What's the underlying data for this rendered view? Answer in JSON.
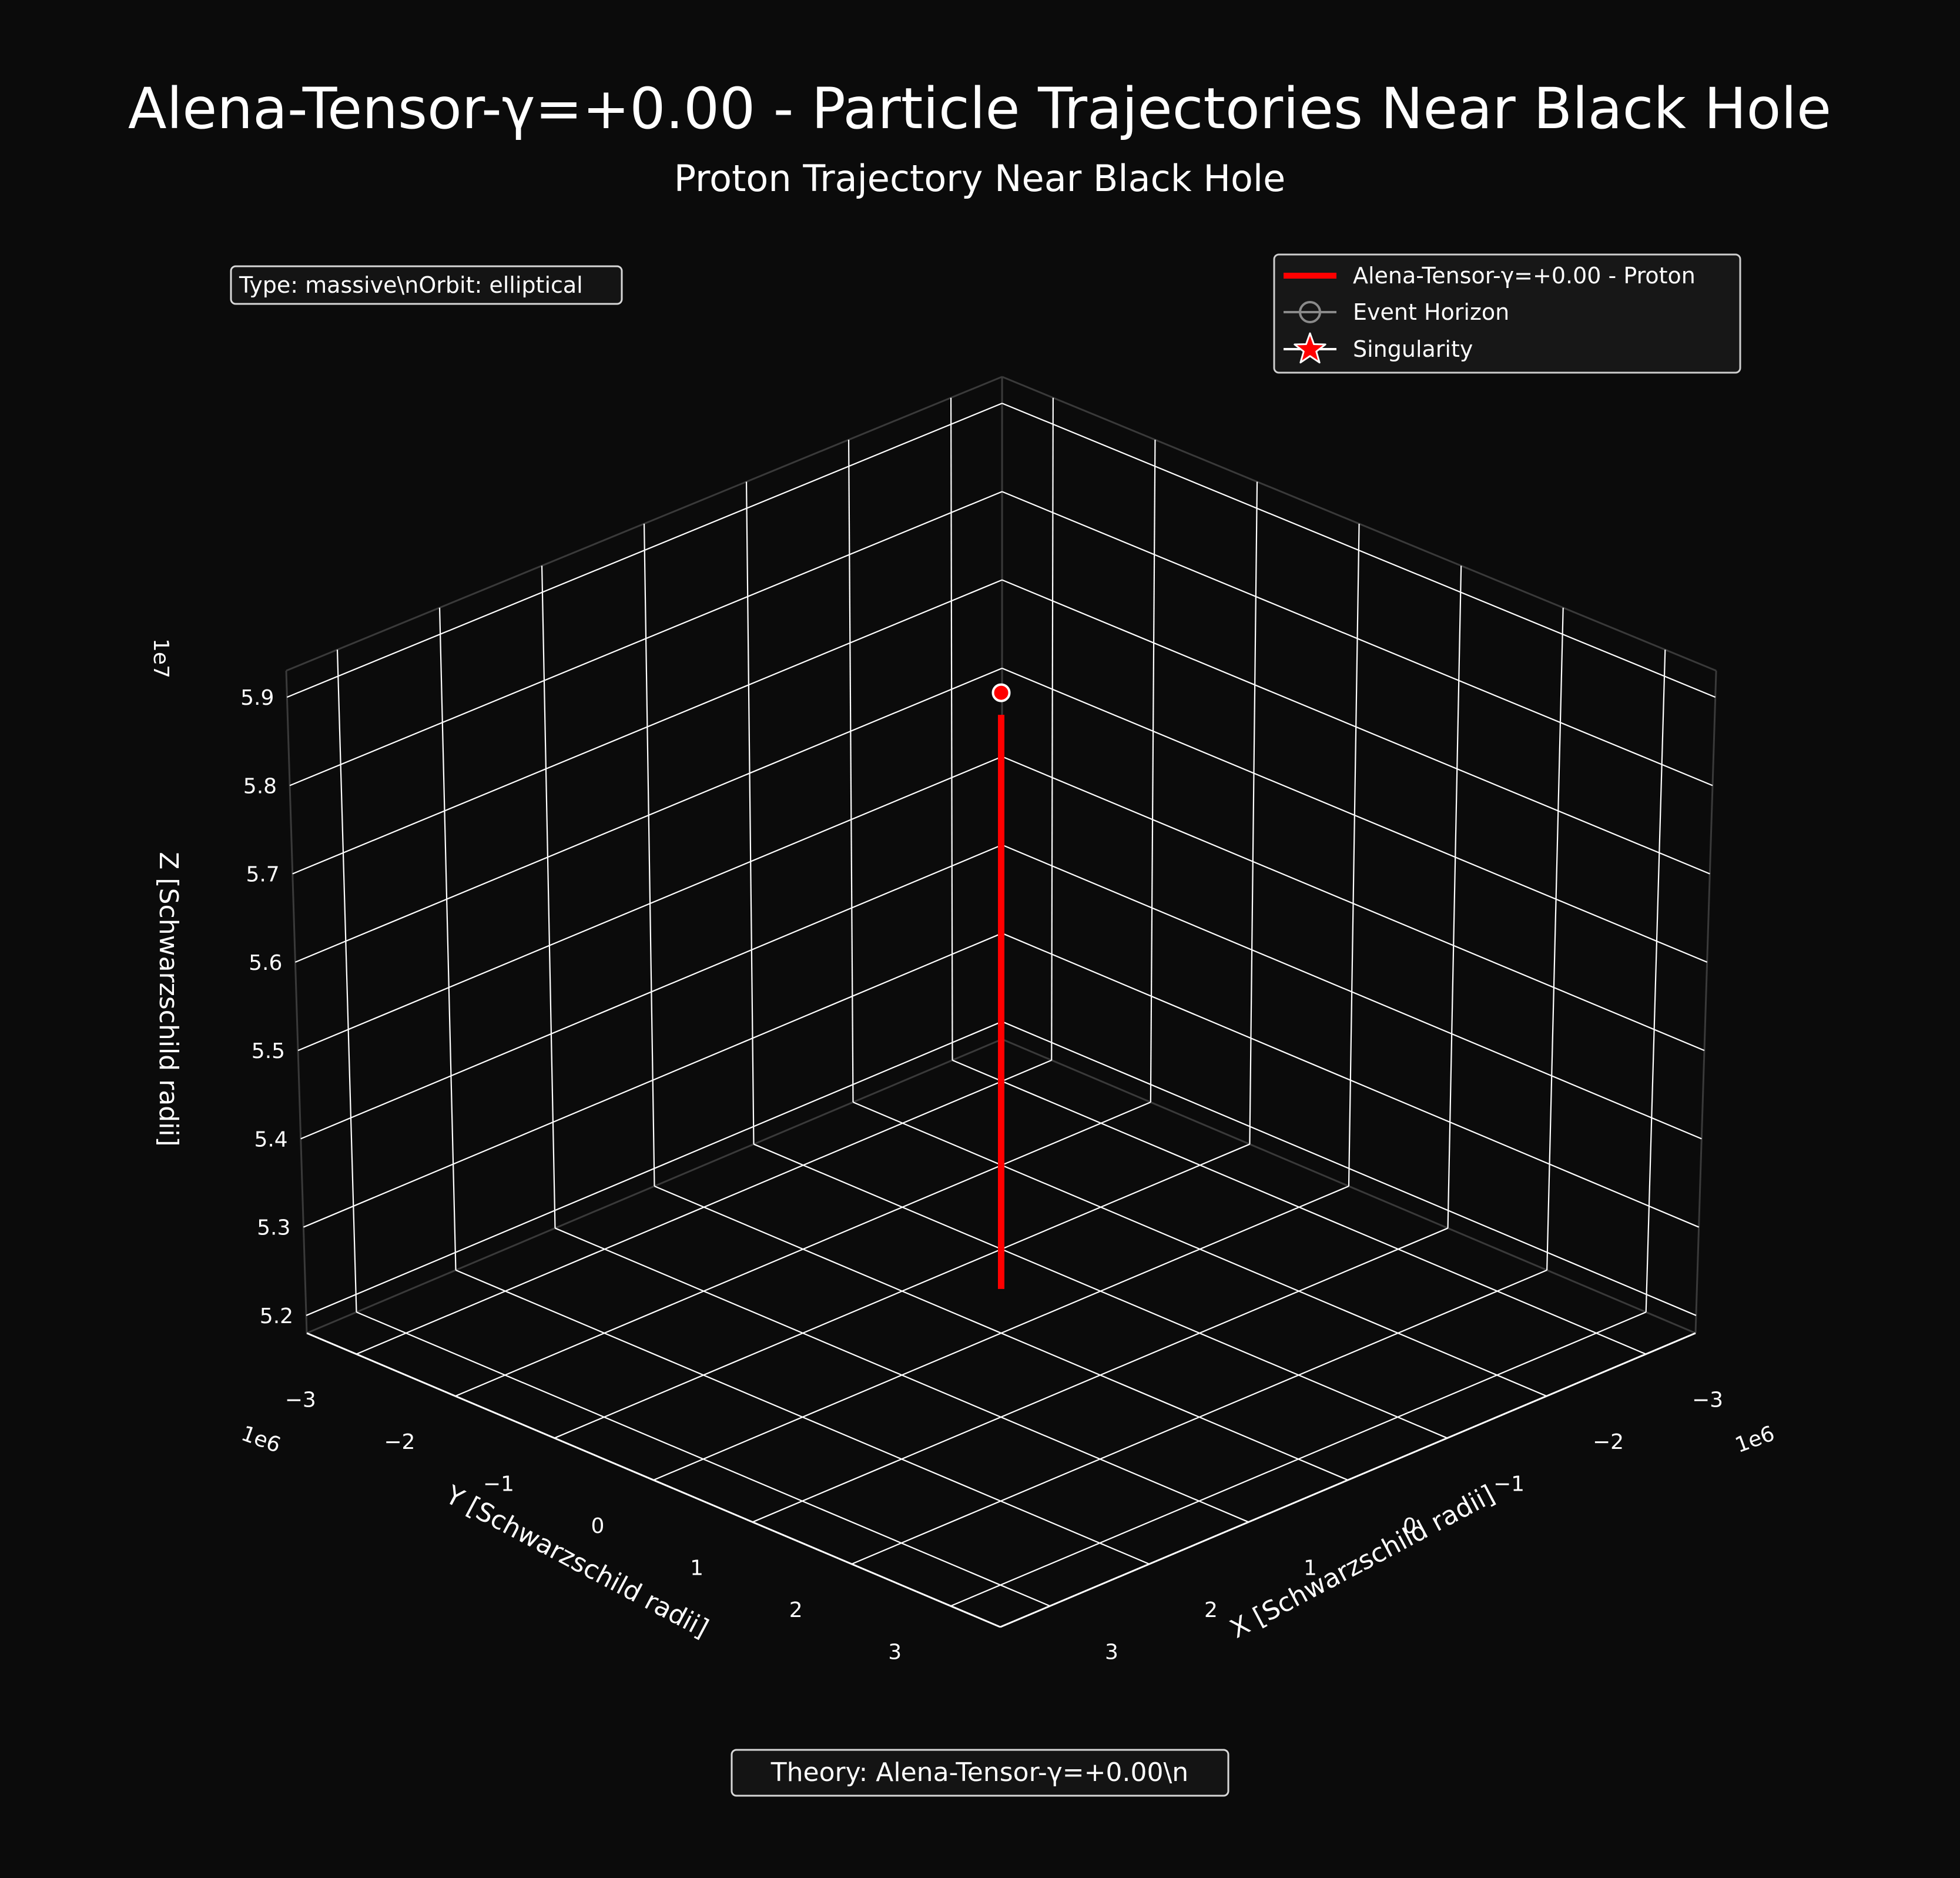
{
  "colors": {
    "background": "#0b0b0b",
    "text": "#ffffff",
    "grid": "#ffffff",
    "pane_edge": "#3a3a3a",
    "trajectory": "#ff0000",
    "marker_fill": "#ff0000",
    "marker_edge": "#ffffff",
    "legend_bg": "#171717",
    "legend_edge": "#cfcfcf",
    "horizon_line": "#8a8a8a"
  },
  "header": {
    "title": "Alena-Tensor-γ=+0.00 - Particle Trajectories Near Black Hole",
    "subtitle": "Proton Trajectory Near Black Hole"
  },
  "info_box": {
    "text": "Type: massive\\nOrbit: elliptical"
  },
  "footer_box": {
    "text": "Theory: Alena-Tensor-γ=+0.00\\n"
  },
  "legend": {
    "entries": [
      {
        "label": "Alena-Tensor-γ=+0.00 - Proton",
        "icon": "red-line"
      },
      {
        "label": "Event Horizon",
        "icon": "hollow-circle-line"
      },
      {
        "label": "Singularity",
        "icon": "red-star"
      }
    ]
  },
  "chart_data": {
    "type": "line",
    "projection": "3d",
    "title": "Proton Trajectory Near Black Hole",
    "xlabel": "X [Schwarzschild radii]",
    "ylabel": "Y [Schwarzschild radii]",
    "zlabel": "Z [Schwarzschild radii]",
    "x_offset_text": "1e6",
    "y_offset_text": "1e6",
    "z_offset_text": "1e7",
    "xlim": [
      -3.5,
      3.5
    ],
    "ylim": [
      -3.5,
      3.5
    ],
    "zlim": [
      5.18,
      5.93
    ],
    "x_ticks": [
      -3,
      -2,
      -1,
      0,
      1,
      2,
      3
    ],
    "y_ticks": [
      -3,
      -2,
      -1,
      0,
      1,
      2,
      3
    ],
    "z_ticks": [
      5.2,
      5.3,
      5.4,
      5.5,
      5.6,
      5.7,
      5.8,
      5.9
    ],
    "x_tick_labels": [
      "−3",
      "−2",
      "−1",
      "0",
      "1",
      "2",
      "3"
    ],
    "y_tick_labels": [
      "−3",
      "−2",
      "−1",
      "0",
      "1",
      "2",
      "3"
    ],
    "z_tick_labels": [
      "5.2",
      "5.3",
      "5.4",
      "5.5",
      "5.6",
      "5.7",
      "5.8",
      "5.9"
    ],
    "grid": true,
    "legend_position": "top-right",
    "series": [
      {
        "name": "Alena-Tensor-γ=+0.00 - Proton",
        "x": [
          0,
          0
        ],
        "y": [
          0,
          0
        ],
        "z": [
          5.23,
          5.88
        ]
      }
    ],
    "end_marker": {
      "x": 0,
      "y": 0,
      "z": 5.905
    }
  }
}
